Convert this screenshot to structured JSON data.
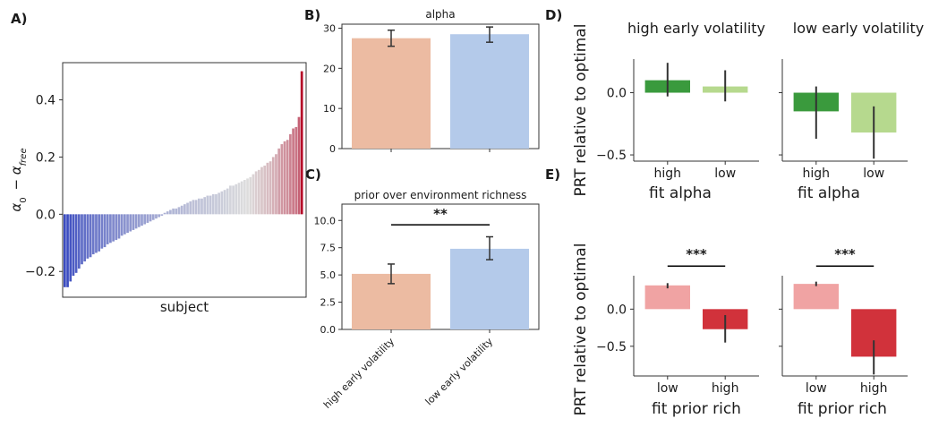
{
  "panel_labels": {
    "A": "A)",
    "B": "B)",
    "C": "C)",
    "D": "D)",
    "E": "E)"
  },
  "colors": {
    "salmon": "#ecbba2",
    "light_blue": "#b4caea",
    "dark_green": "#3a9a3d",
    "light_green": "#b6d98e",
    "pink": "#f0a3a3",
    "red": "#d1323b",
    "errorbar": "#333333",
    "cmap_low": "#3b4cc0",
    "cmap_mid": "#dddddd",
    "cmap_high": "#b40426"
  },
  "chart_data": [
    {
      "id": "A",
      "type": "bar",
      "title": "",
      "xlabel": "subject",
      "ylabel": "α0 − αfree",
      "ylabel_sub0": "0",
      "ylabel_subfree": "free",
      "ylim": [
        -0.29,
        0.53
      ],
      "yticks": [
        -0.2,
        0.0,
        0.2,
        0.4
      ],
      "ytick_labels": [
        "−0.2",
        "0.0",
        "0.2",
        "0.4"
      ],
      "grid": false,
      "colormap": "coolwarm",
      "values": [
        -0.255,
        -0.255,
        -0.235,
        -0.215,
        -0.205,
        -0.19,
        -0.175,
        -0.165,
        -0.155,
        -0.15,
        -0.14,
        -0.135,
        -0.13,
        -0.12,
        -0.115,
        -0.105,
        -0.1,
        -0.095,
        -0.09,
        -0.085,
        -0.075,
        -0.07,
        -0.065,
        -0.06,
        -0.055,
        -0.05,
        -0.045,
        -0.04,
        -0.035,
        -0.03,
        -0.025,
        -0.02,
        -0.015,
        -0.01,
        -0.005,
        0.005,
        0.01,
        0.015,
        0.02,
        0.02,
        0.025,
        0.03,
        0.035,
        0.04,
        0.045,
        0.05,
        0.05,
        0.055,
        0.055,
        0.06,
        0.065,
        0.065,
        0.07,
        0.07,
        0.075,
        0.08,
        0.085,
        0.09,
        0.1,
        0.1,
        0.105,
        0.11,
        0.115,
        0.12,
        0.125,
        0.13,
        0.14,
        0.15,
        0.155,
        0.165,
        0.17,
        0.18,
        0.185,
        0.2,
        0.21,
        0.23,
        0.245,
        0.255,
        0.26,
        0.28,
        0.3,
        0.305,
        0.34,
        0.5
      ]
    },
    {
      "id": "B",
      "type": "bar",
      "title": "alpha",
      "categories": [
        "high early volatility",
        "low early volatility"
      ],
      "values": [
        27.5,
        28.5
      ],
      "err_low": [
        25.5,
        26.5
      ],
      "err_high": [
        29.5,
        30.3
      ],
      "ylim": [
        0,
        31
      ],
      "yticks": [
        0,
        10,
        20,
        30
      ],
      "ytick_labels": [
        "0",
        "10",
        "20",
        "30"
      ],
      "show_category_labels": false,
      "grid": false
    },
    {
      "id": "C",
      "type": "bar",
      "title": "prior over environment richness",
      "categories": [
        "high early volatility",
        "low early volatility"
      ],
      "values": [
        5.1,
        7.4
      ],
      "err_low": [
        4.2,
        6.4
      ],
      "err_high": [
        6.0,
        8.5
      ],
      "ylim": [
        0,
        11.5
      ],
      "yticks": [
        0,
        2.5,
        5,
        7.5,
        10
      ],
      "ytick_labels": [
        "0.0",
        "2.5",
        "5.0",
        "7.5",
        "10.0"
      ],
      "significance": {
        "label": "**",
        "from": 0,
        "to": 1,
        "y": 9.6
      },
      "grid": false
    },
    {
      "id": "D-left",
      "type": "bar",
      "title": "high early volatility",
      "xlabel": "fit alpha",
      "ylabel": "PRT relative to optimal",
      "categories": [
        "high",
        "low"
      ],
      "values": [
        0.1,
        0.05
      ],
      "err_low": [
        -0.03,
        -0.07
      ],
      "err_high": [
        0.24,
        0.18
      ],
      "ylim": [
        -0.55,
        0.27
      ],
      "yticks": [
        0.0,
        -0.5
      ],
      "ytick_labels": [
        "0.0",
        "−0.5"
      ],
      "grid": false
    },
    {
      "id": "D-right",
      "type": "bar",
      "title": "low early volatility",
      "xlabel": "fit alpha",
      "categories": [
        "high",
        "low"
      ],
      "values": [
        -0.15,
        -0.32
      ],
      "err_low": [
        -0.37,
        -0.53
      ],
      "err_high": [
        0.05,
        -0.11
      ],
      "ylim": [
        -0.55,
        0.27
      ],
      "yticks": [
        0.0,
        -0.5
      ],
      "ytick_labels": [
        "",
        ""
      ],
      "grid": false
    },
    {
      "id": "E-left",
      "type": "bar",
      "xlabel": "fit prior rich",
      "ylabel": "PRT relative to optimal",
      "categories": [
        "low",
        "high"
      ],
      "values": [
        0.32,
        -0.27
      ],
      "err_low": [
        0.28,
        -0.45
      ],
      "err_high": [
        0.35,
        -0.08
      ],
      "ylim": [
        -0.9,
        0.45
      ],
      "yticks": [
        0.0,
        -0.5
      ],
      "ytick_labels": [
        "0.0",
        "−0.5"
      ],
      "significance": {
        "label": "***",
        "from": 0,
        "to": 1,
        "y": 0.58
      },
      "grid": false
    },
    {
      "id": "E-right",
      "type": "bar",
      "xlabel": "fit prior rich",
      "categories": [
        "low",
        "high"
      ],
      "values": [
        0.34,
        -0.64
      ],
      "err_low": [
        0.31,
        -0.42
      ],
      "err_high": [
        0.37,
        -0.88
      ],
      "ylim": [
        -0.9,
        0.45
      ],
      "yticks": [
        0.0,
        -0.5
      ],
      "ytick_labels": [
        "",
        ""
      ],
      "significance": {
        "label": "***",
        "from": 0,
        "to": 1,
        "y": 0.58
      },
      "grid": false
    }
  ]
}
